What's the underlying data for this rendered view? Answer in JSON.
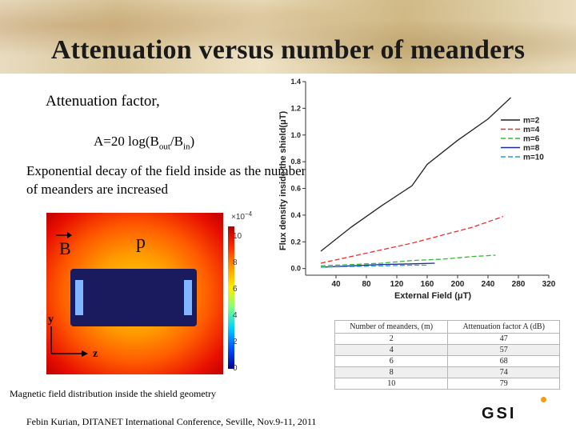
{
  "slide": {
    "title": "Attenuation versus number of meanders",
    "attenuation_label": "Attenuation factor,",
    "formula": {
      "prefix": "A=20 log(B",
      "out": "out",
      "mid": "/B",
      "in": "in",
      "suffix": ")"
    },
    "decay_text": "Exponential decay of the field inside as the number of meanders are increased",
    "field_plot": {
      "label_B": "B",
      "label_p": "p",
      "axis_y": "y",
      "axis_z": "z",
      "colorbar_exponent": "×10",
      "colorbar_power": "−4",
      "colorbar_ticks": [
        "10",
        "8",
        "6",
        "4",
        "2",
        "0"
      ]
    },
    "caption": "Magnetic field distribution inside the shield geometry",
    "footer": "Febin Kurian, DITANET International Conference, Seville, Nov.9-11, 2011",
    "logo": "GSI",
    "table": {
      "headers": [
        "Number of meanders, (m)",
        "Attenuation factor A (dB)"
      ],
      "rows": [
        [
          "2",
          "47"
        ],
        [
          "4",
          "57"
        ],
        [
          "6",
          "68"
        ],
        [
          "8",
          "74"
        ],
        [
          "10",
          "79"
        ]
      ]
    }
  },
  "chart_data": {
    "type": "line",
    "xlabel": "External Field (μT)",
    "ylabel": "Flux density inside the shield(μT)",
    "xlim": [
      0,
      320
    ],
    "ylim": [
      -0.05,
      1.4
    ],
    "x_ticks": [
      40,
      80,
      120,
      160,
      200,
      240,
      280,
      320
    ],
    "y_ticks": [
      0.0,
      0.2,
      0.4,
      0.6,
      0.8,
      1.0,
      1.2,
      1.4
    ],
    "grid": false,
    "legend": "top-right",
    "series": [
      {
        "name": "m=2",
        "color": "#222222",
        "dash": "solid",
        "x": [
          20,
          60,
          100,
          140,
          160,
          200,
          240,
          270
        ],
        "y": [
          0.13,
          0.31,
          0.47,
          0.62,
          0.78,
          0.96,
          1.12,
          1.28
        ]
      },
      {
        "name": "m=4",
        "color": "#e53030",
        "dash": "dash",
        "x": [
          20,
          60,
          100,
          140,
          180,
          220,
          260
        ],
        "y": [
          0.04,
          0.09,
          0.14,
          0.19,
          0.25,
          0.31,
          0.39
        ]
      },
      {
        "name": "m=6",
        "color": "#33bb33",
        "dash": "dash",
        "x": [
          20,
          60,
          100,
          140,
          180,
          220,
          250
        ],
        "y": [
          0.02,
          0.03,
          0.04,
          0.06,
          0.07,
          0.09,
          0.1
        ]
      },
      {
        "name": "m=8",
        "color": "#1a2a9a",
        "dash": "solid",
        "x": [
          20,
          60,
          100,
          140,
          170
        ],
        "y": [
          0.01,
          0.02,
          0.03,
          0.035,
          0.04
        ]
      },
      {
        "name": "m=10",
        "color": "#2a9ad8",
        "dash": "dash",
        "x": [
          20,
          60,
          100,
          140,
          160
        ],
        "y": [
          0.01,
          0.015,
          0.02,
          0.025,
          0.025
        ]
      }
    ]
  }
}
